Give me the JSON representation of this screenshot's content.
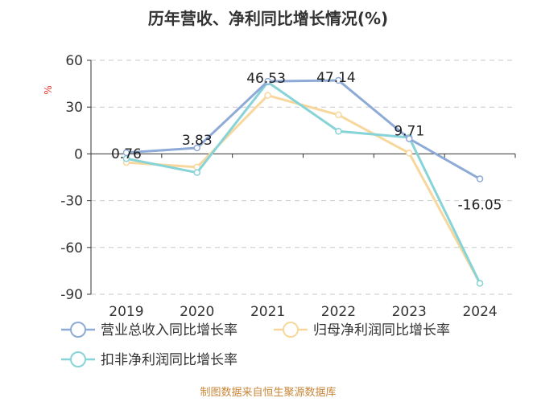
{
  "chart_data": {
    "type": "line",
    "title": "历年营收、净利同比增长情况(%)",
    "ylabel": "%",
    "xlabel": "",
    "categories": [
      "2019",
      "2020",
      "2021",
      "2022",
      "2023",
      "2024"
    ],
    "ylim": [
      -90,
      60
    ],
    "yticks": [
      60,
      30,
      0,
      -30,
      -60,
      -90
    ],
    "grid": true,
    "legend_position": "bottom",
    "series": [
      {
        "name": "营业总收入同比增长率",
        "color": "#8eaad6",
        "values": [
          0.76,
          3.83,
          46.53,
          47.14,
          9.71,
          -16.05
        ],
        "labels": [
          "0.76",
          "3.83",
          "46.53",
          "47.14",
          "9.71",
          "-16.05"
        ]
      },
      {
        "name": "归母净利润同比增长率",
        "color": "#f7d79c",
        "values": [
          -5.5,
          -8.5,
          37.5,
          25.0,
          0.5,
          -83.0
        ]
      },
      {
        "name": "扣非净利润同比增长率",
        "color": "#86d3d8",
        "values": [
          -3.0,
          -12.0,
          46.0,
          14.5,
          10.5,
          -83.0
        ]
      }
    ]
  },
  "source_note": "制图数据来自恒生聚源数据库"
}
